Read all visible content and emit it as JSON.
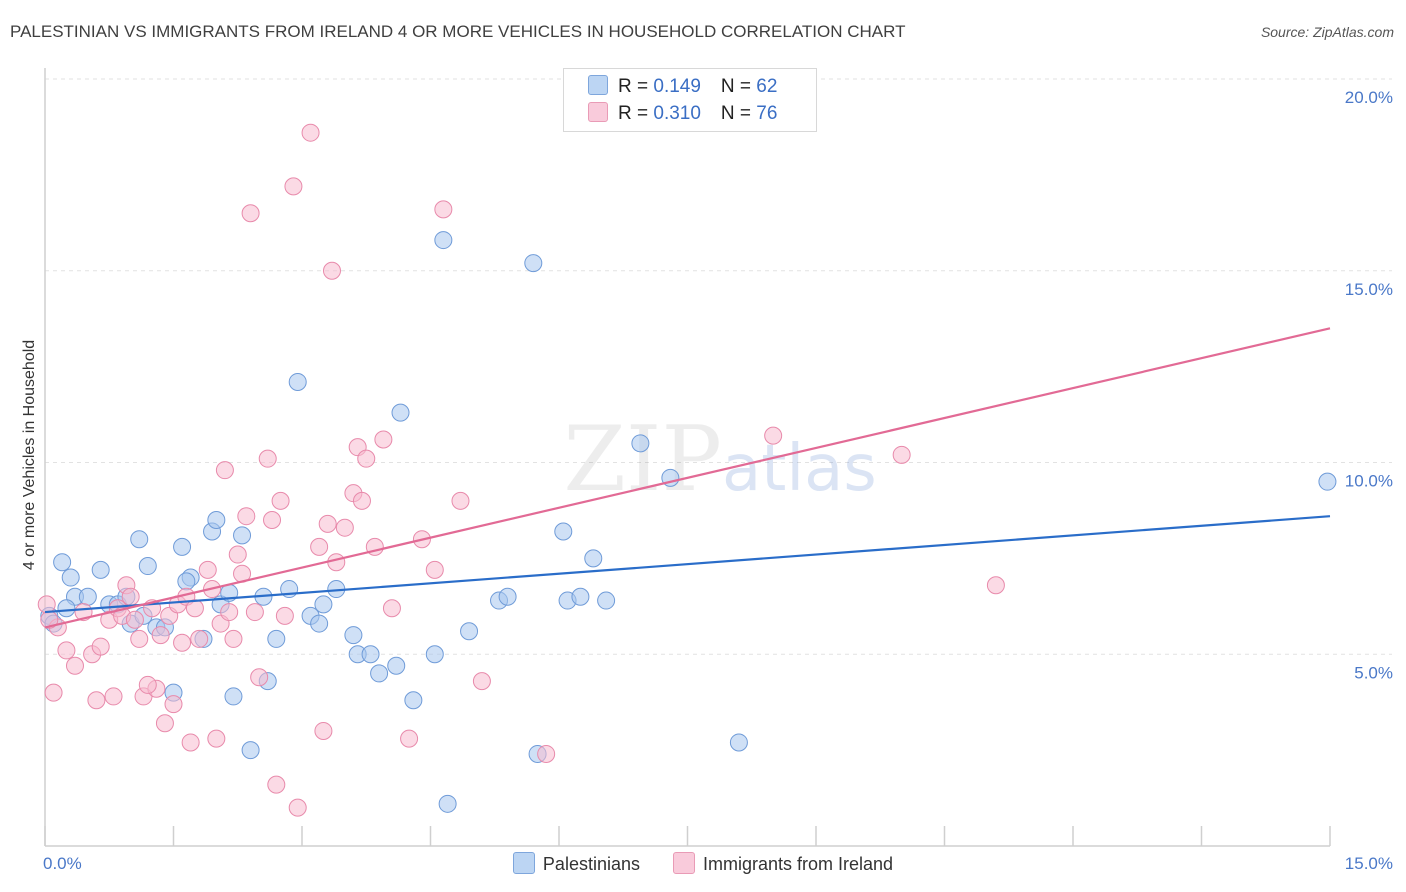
{
  "chart_data": {
    "type": "scatter",
    "title": "PALESTINIAN VS IMMIGRANTS FROM IRELAND 4 OR MORE VEHICLES IN HOUSEHOLD CORRELATION CHART",
    "source": "Source: ZipAtlas.com",
    "xlabel": "",
    "ylabel": "4 or more Vehicles in Household",
    "xlim": [
      0,
      15
    ],
    "ylim": [
      0,
      20
    ],
    "x_tick_labels": [
      "0.0%",
      "15.0%"
    ],
    "y_ticks": [
      {
        "value": 5,
        "label": "5.0%"
      },
      {
        "value": 10,
        "label": "10.0%"
      },
      {
        "value": 15,
        "label": "15.0%"
      },
      {
        "value": 20,
        "label": "20.0%"
      }
    ],
    "grid": true,
    "watermark": "ZIPatlas",
    "legend_top": [
      {
        "r_label": "R = ",
        "r_value": "0.149",
        "n_label": "N = ",
        "n_value": "62"
      },
      {
        "r_label": "R = ",
        "r_value": "0.310",
        "n_label": "N = ",
        "n_value": "76"
      }
    ],
    "series": [
      {
        "name": "Palestinians",
        "color": "#a8c6ee",
        "stroke": "#6f9bd8",
        "line_color": "#2a6dc9",
        "trend": {
          "x": [
            0,
            15
          ],
          "y": [
            6.1,
            8.6
          ]
        },
        "points": [
          {
            "x": 0.05,
            "y": 6.0
          },
          {
            "x": 0.1,
            "y": 5.8
          },
          {
            "x": 0.2,
            "y": 7.4
          },
          {
            "x": 0.3,
            "y": 7.0
          },
          {
            "x": 0.35,
            "y": 6.5
          },
          {
            "x": 0.5,
            "y": 6.5
          },
          {
            "x": 0.65,
            "y": 7.2
          },
          {
            "x": 0.75,
            "y": 6.3
          },
          {
            "x": 0.85,
            "y": 6.3
          },
          {
            "x": 0.95,
            "y": 6.5
          },
          {
            "x": 1.0,
            "y": 5.8
          },
          {
            "x": 1.1,
            "y": 8.0
          },
          {
            "x": 1.2,
            "y": 7.3
          },
          {
            "x": 1.3,
            "y": 5.7
          },
          {
            "x": 1.4,
            "y": 5.7
          },
          {
            "x": 1.5,
            "y": 4.0
          },
          {
            "x": 1.6,
            "y": 7.8
          },
          {
            "x": 1.7,
            "y": 7.0
          },
          {
            "x": 1.65,
            "y": 6.9
          },
          {
            "x": 1.85,
            "y": 5.4
          },
          {
            "x": 1.95,
            "y": 8.2
          },
          {
            "x": 2.0,
            "y": 8.5
          },
          {
            "x": 2.05,
            "y": 6.3
          },
          {
            "x": 2.15,
            "y": 6.6
          },
          {
            "x": 2.2,
            "y": 3.9
          },
          {
            "x": 2.3,
            "y": 8.1
          },
          {
            "x": 2.4,
            "y": 2.5
          },
          {
            "x": 2.55,
            "y": 6.5
          },
          {
            "x": 2.6,
            "y": 4.3
          },
          {
            "x": 2.7,
            "y": 5.4
          },
          {
            "x": 2.85,
            "y": 6.7
          },
          {
            "x": 2.95,
            "y": 12.1
          },
          {
            "x": 3.1,
            "y": 6.0
          },
          {
            "x": 3.2,
            "y": 5.8
          },
          {
            "x": 3.25,
            "y": 6.3
          },
          {
            "x": 3.4,
            "y": 6.7
          },
          {
            "x": 3.6,
            "y": 5.5
          },
          {
            "x": 3.65,
            "y": 5.0
          },
          {
            "x": 3.8,
            "y": 5.0
          },
          {
            "x": 3.9,
            "y": 4.5
          },
          {
            "x": 4.1,
            "y": 4.7
          },
          {
            "x": 4.15,
            "y": 11.3
          },
          {
            "x": 4.3,
            "y": 3.8
          },
          {
            "x": 4.55,
            "y": 5.0
          },
          {
            "x": 4.65,
            "y": 15.8
          },
          {
            "x": 4.7,
            "y": 1.1
          },
          {
            "x": 4.95,
            "y": 5.6
          },
          {
            "x": 5.3,
            "y": 6.4
          },
          {
            "x": 5.4,
            "y": 6.5
          },
          {
            "x": 5.7,
            "y": 15.2
          },
          {
            "x": 5.75,
            "y": 2.4
          },
          {
            "x": 6.05,
            "y": 8.2
          },
          {
            "x": 6.1,
            "y": 6.4
          },
          {
            "x": 6.25,
            "y": 6.5
          },
          {
            "x": 6.4,
            "y": 7.5
          },
          {
            "x": 6.55,
            "y": 6.4
          },
          {
            "x": 6.95,
            "y": 10.5
          },
          {
            "x": 7.3,
            "y": 9.6
          },
          {
            "x": 8.1,
            "y": 2.7
          },
          {
            "x": 14.97,
            "y": 9.5
          },
          {
            "x": 1.15,
            "y": 6.0
          },
          {
            "x": 0.25,
            "y": 6.2
          }
        ]
      },
      {
        "name": "Immigrants from Ireland",
        "color": "#f7bcd0",
        "stroke": "#e88aab",
        "line_color": "#e26a95",
        "trend": {
          "x": [
            0,
            15
          ],
          "y": [
            5.7,
            13.5
          ]
        },
        "points": [
          {
            "x": 0.02,
            "y": 6.3
          },
          {
            "x": 0.1,
            "y": 4.0
          },
          {
            "x": 0.15,
            "y": 5.7
          },
          {
            "x": 0.25,
            "y": 5.1
          },
          {
            "x": 0.35,
            "y": 4.7
          },
          {
            "x": 0.45,
            "y": 6.1
          },
          {
            "x": 0.55,
            "y": 5.0
          },
          {
            "x": 0.65,
            "y": 5.2
          },
          {
            "x": 0.75,
            "y": 5.9
          },
          {
            "x": 0.8,
            "y": 3.9
          },
          {
            "x": 0.85,
            "y": 6.2
          },
          {
            "x": 0.9,
            "y": 6.0
          },
          {
            "x": 0.95,
            "y": 6.8
          },
          {
            "x": 1.0,
            "y": 6.5
          },
          {
            "x": 1.05,
            "y": 5.9
          },
          {
            "x": 1.1,
            "y": 5.4
          },
          {
            "x": 1.15,
            "y": 3.9
          },
          {
            "x": 1.25,
            "y": 6.2
          },
          {
            "x": 1.3,
            "y": 4.1
          },
          {
            "x": 1.35,
            "y": 5.5
          },
          {
            "x": 1.4,
            "y": 3.2
          },
          {
            "x": 1.45,
            "y": 6.0
          },
          {
            "x": 1.5,
            "y": 3.7
          },
          {
            "x": 1.55,
            "y": 6.3
          },
          {
            "x": 1.6,
            "y": 5.3
          },
          {
            "x": 1.65,
            "y": 6.5
          },
          {
            "x": 1.7,
            "y": 2.7
          },
          {
            "x": 1.75,
            "y": 6.2
          },
          {
            "x": 1.8,
            "y": 5.4
          },
          {
            "x": 1.9,
            "y": 7.2
          },
          {
            "x": 1.95,
            "y": 6.7
          },
          {
            "x": 2.0,
            "y": 2.8
          },
          {
            "x": 2.05,
            "y": 5.8
          },
          {
            "x": 2.1,
            "y": 9.8
          },
          {
            "x": 2.15,
            "y": 6.1
          },
          {
            "x": 2.2,
            "y": 5.4
          },
          {
            "x": 2.25,
            "y": 7.6
          },
          {
            "x": 2.3,
            "y": 7.1
          },
          {
            "x": 2.35,
            "y": 8.6
          },
          {
            "x": 2.4,
            "y": 16.5
          },
          {
            "x": 2.45,
            "y": 6.1
          },
          {
            "x": 2.5,
            "y": 4.4
          },
          {
            "x": 2.6,
            "y": 10.1
          },
          {
            "x": 2.65,
            "y": 8.5
          },
          {
            "x": 2.7,
            "y": 1.6
          },
          {
            "x": 2.75,
            "y": 9.0
          },
          {
            "x": 2.8,
            "y": 6.0
          },
          {
            "x": 2.9,
            "y": 17.2
          },
          {
            "x": 2.95,
            "y": 1.0
          },
          {
            "x": 3.1,
            "y": 18.6
          },
          {
            "x": 3.2,
            "y": 7.8
          },
          {
            "x": 3.25,
            "y": 3.0
          },
          {
            "x": 3.3,
            "y": 8.4
          },
          {
            "x": 3.35,
            "y": 15.0
          },
          {
            "x": 3.4,
            "y": 7.4
          },
          {
            "x": 3.5,
            "y": 8.3
          },
          {
            "x": 3.6,
            "y": 9.2
          },
          {
            "x": 3.65,
            "y": 10.4
          },
          {
            "x": 3.7,
            "y": 9.0
          },
          {
            "x": 3.75,
            "y": 10.1
          },
          {
            "x": 3.85,
            "y": 7.8
          },
          {
            "x": 3.95,
            "y": 10.6
          },
          {
            "x": 4.05,
            "y": 6.2
          },
          {
            "x": 4.25,
            "y": 2.8
          },
          {
            "x": 4.4,
            "y": 8.0
          },
          {
            "x": 4.55,
            "y": 7.2
          },
          {
            "x": 4.65,
            "y": 16.6
          },
          {
            "x": 4.85,
            "y": 9.0
          },
          {
            "x": 5.1,
            "y": 4.3
          },
          {
            "x": 5.85,
            "y": 2.4
          },
          {
            "x": 8.5,
            "y": 10.7
          },
          {
            "x": 10.0,
            "y": 10.2
          },
          {
            "x": 11.1,
            "y": 6.8
          },
          {
            "x": 0.6,
            "y": 3.8
          },
          {
            "x": 1.2,
            "y": 4.2
          },
          {
            "x": 0.05,
            "y": 5.9
          }
        ]
      }
    ]
  }
}
